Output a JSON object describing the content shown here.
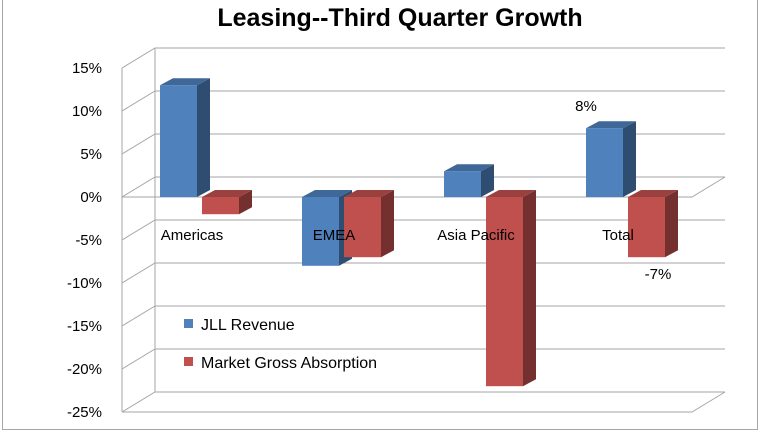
{
  "chart_data": {
    "type": "bar",
    "title": "Leasing--Third Quarter Growth",
    "xlabel": "",
    "ylabel": "",
    "categories": [
      "Americas",
      "EMEA",
      "Asia Pacific",
      "Total"
    ],
    "series": [
      {
        "name": "JLL Revenue",
        "values": [
          13,
          -8,
          3,
          8
        ],
        "color": "#4f81bd"
      },
      {
        "name": "Market Gross Absorption",
        "values": [
          -2,
          -7,
          -22,
          -7
        ],
        "color": "#c0504d"
      }
    ],
    "data_labels": [
      {
        "series": 0,
        "category": 3,
        "text": "8%"
      },
      {
        "series": 1,
        "category": 3,
        "text": "-7%"
      }
    ],
    "ylim": [
      -25,
      15
    ],
    "yticks": [
      15,
      10,
      5,
      0,
      -5,
      -10,
      -15,
      -20,
      -25
    ],
    "ytick_labels": [
      "15%",
      "10%",
      "5%",
      "0%",
      "-5%",
      "-10%",
      "-15%",
      "-20%",
      "-25%"
    ],
    "grid": true,
    "legend_position": "bottom-left",
    "style": "3d-column"
  }
}
